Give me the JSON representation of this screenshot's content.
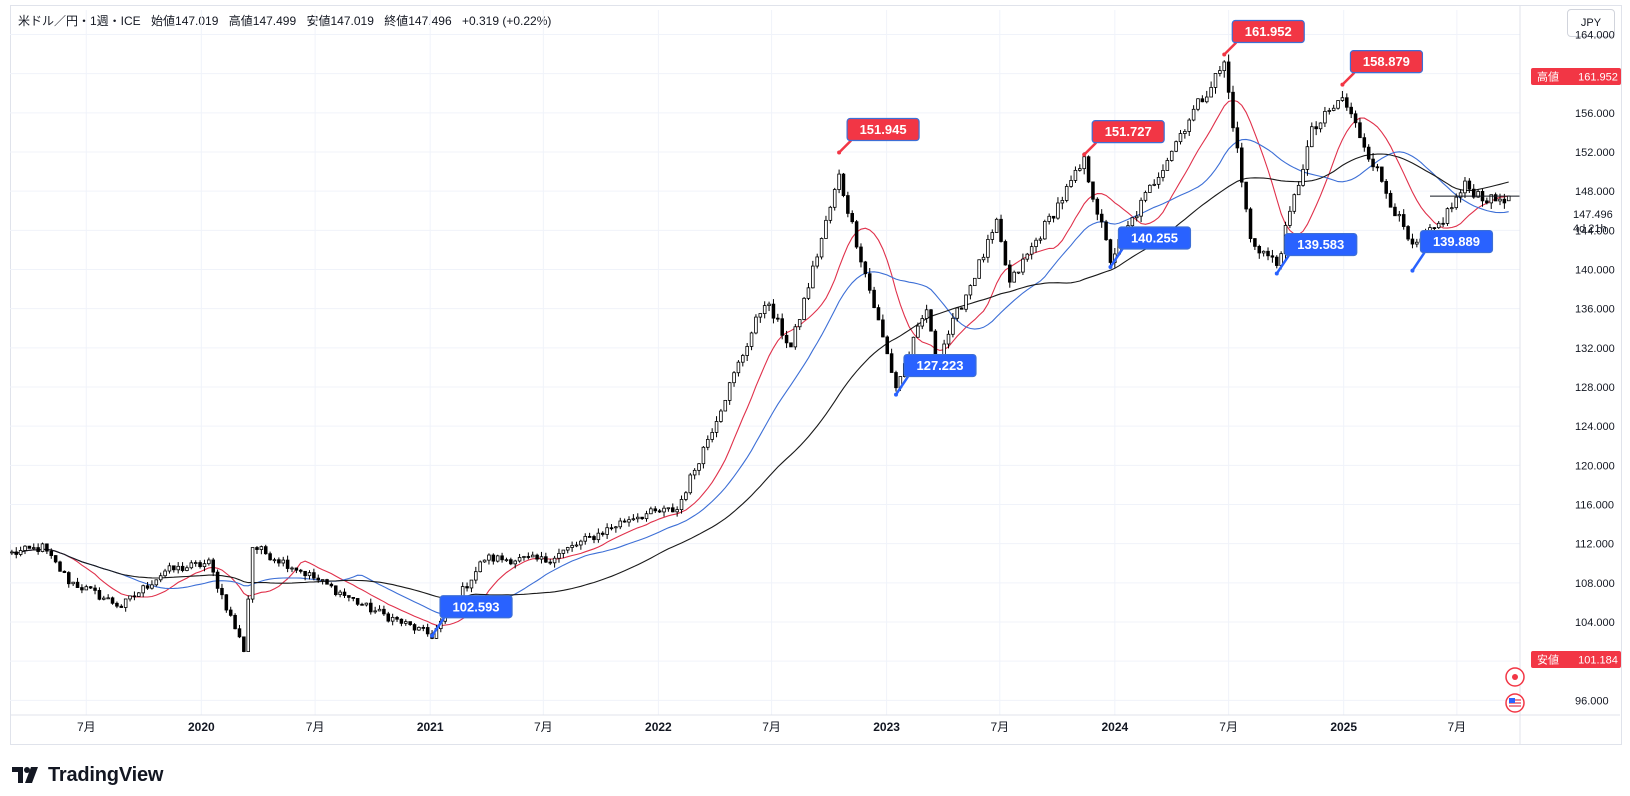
{
  "header": {
    "symbol": "米ドル／円・1週・ICE",
    "open": "始値147.019",
    "high": "高値147.499",
    "low": "安値147.019",
    "close": "終値147.496",
    "change": "+0.319 (+0.22%)"
  },
  "currency_button": "JPY",
  "brand": "TradingView",
  "price_axis": {
    "ticks": [
      "164.000",
      "160.000",
      "156.000",
      "152.000",
      "148.000",
      "144.000",
      "140.000",
      "136.000",
      "132.000",
      "128.000",
      "124.000",
      "120.000",
      "116.000",
      "112.000",
      "108.000",
      "104.000",
      "100.000",
      "96.000"
    ],
    "current_price": "147.496",
    "countdown": "4d 21h",
    "high_label": "高値",
    "high_value": "161.952",
    "low_label": "安値",
    "low_value": "101.184"
  },
  "time_axis": {
    "labels": [
      "7月",
      "2020",
      "7月",
      "2021",
      "7月",
      "2022",
      "7月",
      "2023",
      "7月",
      "2024",
      "7月",
      "2025",
      "7月"
    ]
  },
  "colors": {
    "up": "#ffffff",
    "down": "#000000",
    "ma_short": "#e0314b",
    "ma_mid": "#3d6fd6",
    "ma_long": "#1a1a1a",
    "high_callout": "#f23645",
    "low_callout": "#2962ff",
    "grid": "#f0f3fa"
  },
  "callouts": [
    {
      "kind": "high",
      "value": "161.952",
      "date": "2024-06-24"
    },
    {
      "kind": "high",
      "value": "158.879",
      "date": "2024-12-30"
    },
    {
      "kind": "high",
      "value": "151.945",
      "date": "2022-10-17"
    },
    {
      "kind": "high",
      "value": "151.727",
      "date": "2023-11-13"
    },
    {
      "kind": "low",
      "value": "140.255",
      "date": "2023-12-25"
    },
    {
      "kind": "low",
      "value": "139.583",
      "date": "2024-09-16"
    },
    {
      "kind": "low",
      "value": "139.889",
      "date": "2025-04-21"
    },
    {
      "kind": "low",
      "value": "127.223",
      "date": "2023-01-16"
    },
    {
      "kind": "low",
      "value": "102.593",
      "date": "2021-01-04"
    }
  ],
  "chart_data": {
    "type": "candlestick",
    "title": "米ドル／円・1週・ICE",
    "y_range": [
      94.5,
      166.5
    ],
    "x_range": [
      "2019-03-01",
      "2025-10-10"
    ],
    "grid": true,
    "close_series": [
      {
        "date": "2019-03-04",
        "close": 111.0
      },
      {
        "date": "2019-04-22",
        "close": 111.6
      },
      {
        "date": "2019-06-03",
        "close": 108.2
      },
      {
        "date": "2019-08-26",
        "close": 105.6
      },
      {
        "date": "2019-11-04",
        "close": 109.2
      },
      {
        "date": "2020-01-13",
        "close": 110.0
      },
      {
        "date": "2020-03-09",
        "close": 101.2
      },
      {
        "date": "2020-03-23",
        "close": 111.7
      },
      {
        "date": "2020-06-01",
        "close": 109.5
      },
      {
        "date": "2020-09-21",
        "close": 105.5
      },
      {
        "date": "2021-01-04",
        "close": 102.6
      },
      {
        "date": "2021-03-29",
        "close": 110.5
      },
      {
        "date": "2021-07-05",
        "close": 110.3
      },
      {
        "date": "2021-11-22",
        "close": 114.8
      },
      {
        "date": "2022-01-31",
        "close": 115.5
      },
      {
        "date": "2022-03-28",
        "close": 123.8
      },
      {
        "date": "2022-06-20",
        "close": 136.8
      },
      {
        "date": "2022-08-01",
        "close": 132.0
      },
      {
        "date": "2022-10-17",
        "close": 149.5
      },
      {
        "date": "2023-01-16",
        "close": 128.0
      },
      {
        "date": "2023-03-06",
        "close": 136.0
      },
      {
        "date": "2023-03-20",
        "close": 130.5
      },
      {
        "date": "2023-06-26",
        "close": 144.5
      },
      {
        "date": "2023-07-17",
        "close": 138.5
      },
      {
        "date": "2023-11-13",
        "close": 151.0
      },
      {
        "date": "2023-12-25",
        "close": 141.0
      },
      {
        "date": "2024-04-29",
        "close": 155.5
      },
      {
        "date": "2024-06-24",
        "close": 161.0
      },
      {
        "date": "2024-08-05",
        "close": 143.0
      },
      {
        "date": "2024-09-16",
        "close": 140.5
      },
      {
        "date": "2024-11-11",
        "close": 154.0
      },
      {
        "date": "2024-12-30",
        "close": 157.5
      },
      {
        "date": "2025-02-24",
        "close": 150.0
      },
      {
        "date": "2025-04-21",
        "close": 142.0
      },
      {
        "date": "2025-06-02",
        "close": 144.5
      },
      {
        "date": "2025-07-14",
        "close": 148.5
      },
      {
        "date": "2025-08-25",
        "close": 147.0
      },
      {
        "date": "2025-09-22",
        "close": 147.5
      }
    ],
    "last": {
      "open": 147.019,
      "high": 147.499,
      "low": 147.019,
      "close": 147.496,
      "change": 0.319,
      "change_pct": 0.22
    },
    "period_high": 161.952,
    "period_low": 101.184,
    "moving_averages": [
      {
        "name": "short",
        "color": "#e0314b",
        "period_weeks": 13
      },
      {
        "name": "mid",
        "color": "#3d6fd6",
        "period_weeks": 26
      },
      {
        "name": "long",
        "color": "#1a1a1a",
        "period_weeks": 52
      }
    ]
  }
}
